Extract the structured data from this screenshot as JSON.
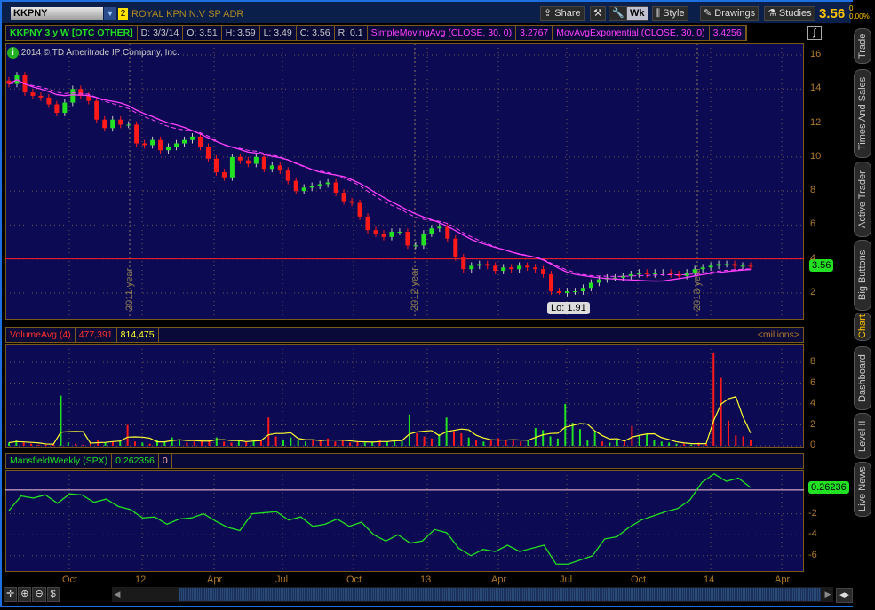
{
  "toolbar": {
    "symbol": "KKPNY",
    "link_badge": "2",
    "company": "ROYAL KPN N.V SP ADR",
    "share": "Share",
    "wk": "Wk",
    "style": "Style",
    "drawings": "Drawings",
    "studies": "Studies",
    "last": "3.56",
    "change": "0",
    "change_pct": "0.00%"
  },
  "header": {
    "title": "KKPNY 3 y W [OTC OTHER]",
    "d": "D: 3/3/14",
    "o": "O: 3.51",
    "h": "H: 3.59",
    "l": "L: 3.49",
    "c": "C: 3.56",
    "r": "R: 0.1",
    "sma": "SimpleMovingAvg (CLOSE, 30, 0)",
    "sma_val": "3.2767",
    "ema": "MovAvgExponential (CLOSE, 30, 0)",
    "ema_val": "3.4256"
  },
  "copyright": "2014 © TD Ameritrade IP Company, Inc.",
  "lo_label": "Lo: 1.91",
  "price_tag": "3.56",
  "volume_header": {
    "name": "VolumeAvg (4)",
    "v1": "477,391",
    "v2": "814,475",
    "units": "<millions>"
  },
  "mansfield_header": {
    "name": "MansfieldWeekly (SPX)",
    "v1": "0.262356",
    "v2": "0"
  },
  "mansfield_tag": "0.26236",
  "side_tabs": [
    "Trade",
    "Times And Sales",
    "Active Trader",
    "Big Buttons",
    "Chart",
    "Dashboard",
    "Level II",
    "Live News"
  ],
  "active_tab": "Chart",
  "colors": {
    "up": "#22e022",
    "down": "#ff1a1a",
    "sma": "#ff40ff",
    "ema": "#ff40ff",
    "volavg": "#ffff30",
    "mansfield": "#22e022",
    "bg": "#0c0a52",
    "axis": "#b07a30"
  },
  "chart_data": [
    {
      "type": "candlestick",
      "period": "weekly",
      "last_date": "3/3/14",
      "ylim": [
        0,
        16
      ],
      "yticks": [
        2,
        4,
        6,
        8,
        10,
        12,
        14,
        16
      ],
      "xticks": [
        "Oct",
        "12",
        "Apr",
        "Jul",
        "Oct",
        "13",
        "Apr",
        "Jul",
        "Oct",
        "14",
        "Apr"
      ],
      "year_markers": [
        "2011 year",
        "2012 year",
        "2013 year"
      ],
      "close": [
        14.3,
        14.8,
        13.8,
        13.6,
        13.5,
        13.1,
        12.6,
        13.2,
        14.0,
        13.6,
        13.3,
        12.2,
        11.7,
        12.2,
        11.9,
        11.9,
        10.8,
        10.7,
        11.0,
        10.4,
        10.6,
        10.8,
        11.0,
        11.2,
        10.6,
        9.9,
        9.1,
        8.8,
        10.0,
        9.8,
        9.6,
        10.0,
        9.3,
        9.5,
        9.2,
        8.6,
        8.0,
        8.2,
        8.3,
        8.4,
        8.5,
        7.9,
        7.4,
        7.3,
        6.5,
        5.7,
        5.5,
        5.3,
        5.6,
        5.6,
        4.8,
        4.8,
        5.5,
        5.8,
        5.9,
        5.2,
        4.1,
        3.4,
        3.6,
        3.7,
        3.6,
        3.3,
        3.5,
        3.4,
        3.6,
        3.5,
        3.4,
        3.1,
        2.1,
        2.0,
        2.1,
        2.1,
        2.3,
        2.6,
        2.8,
        2.9,
        2.9,
        3.0,
        3.1,
        3.2,
        3.1,
        3.2,
        3.2,
        3.1,
        3.0,
        3.2,
        3.4,
        3.5,
        3.6,
        3.7,
        3.7,
        3.6,
        3.6,
        3.56
      ],
      "low_marker": 1.91,
      "hline": 4.0,
      "studies": [
        "SimpleMovingAvg (CLOSE, 30, 0)",
        "MovAvgExponential (CLOSE, 30, 0)"
      ]
    },
    {
      "type": "bar",
      "name": "Volume",
      "units": "millions",
      "ylim": [
        0,
        9
      ],
      "yticks": [
        0,
        2,
        4,
        6,
        8
      ],
      "values": [
        0.3,
        0.5,
        0.3,
        0.2,
        0.1,
        0.1,
        0.2,
        4.8,
        0.3,
        0.2,
        0.1,
        0.4,
        0.5,
        0.3,
        0.4,
        0.6,
        2.0,
        0.4,
        0.3,
        0.2,
        0.6,
        0.4,
        0.8,
        0.5,
        0.3,
        0.4,
        0.6,
        0.5,
        0.8,
        0.4,
        0.3,
        0.5,
        0.4,
        0.6,
        0.5,
        2.7,
        0.9,
        0.6,
        0.8,
        0.5,
        0.4,
        0.6,
        0.5,
        0.7,
        0.4,
        0.5,
        0.3,
        0.4,
        0.3,
        0.4,
        0.5,
        0.4,
        0.6,
        0.5,
        3.0,
        1.2,
        0.9,
        0.7,
        1.1,
        2.7,
        1.4,
        1.2,
        0.8,
        0.6,
        0.4,
        0.5,
        0.7,
        0.6,
        0.5,
        0.4,
        0.6,
        1.7,
        1.5,
        0.9,
        0.7,
        4.0,
        2.2,
        1.6,
        0.5,
        1.4,
        0.4,
        0.3,
        0.6,
        0.5,
        1.9,
        1.0,
        1.1,
        0.6,
        0.4,
        0.3,
        0.2,
        0.2,
        0.1,
        0.3,
        0.2,
        8.9,
        6.5,
        2.4,
        1.0,
        0.9,
        0.6
      ],
      "avg_period": 4
    },
    {
      "type": "line",
      "name": "MansfieldWeekly (SPX)",
      "ylim": [
        -7.5,
        2.5
      ],
      "yticks": [
        -2,
        -4,
        -6
      ],
      "hline": 0.26236,
      "values": [
        -1.7,
        -0.3,
        -0.5,
        -0.2,
        -1.0,
        -0.1,
        -0.2,
        -0.9,
        -0.6,
        -1.3,
        -1.6,
        -2.4,
        -2.3,
        -3.0,
        -2.5,
        -2.4,
        -2.0,
        -2.7,
        -3.3,
        -3.6,
        -2.0,
        -1.9,
        -1.8,
        -2.6,
        -2.3,
        -3.2,
        -3.0,
        -2.5,
        -3.2,
        -2.8,
        -4.0,
        -4.6,
        -4.0,
        -4.8,
        -4.6,
        -3.5,
        -3.8,
        -5.3,
        -6.0,
        -5.4,
        -5.6,
        -5.0,
        -5.6,
        -5.3,
        -5.0,
        -6.8,
        -6.8,
        -6.4,
        -6.0,
        -4.4,
        -4.2,
        -3.3,
        -2.6,
        -2.2,
        -1.8,
        -1.5,
        -0.7,
        1.0,
        1.8,
        1.1,
        1.4,
        0.5
      ]
    }
  ]
}
